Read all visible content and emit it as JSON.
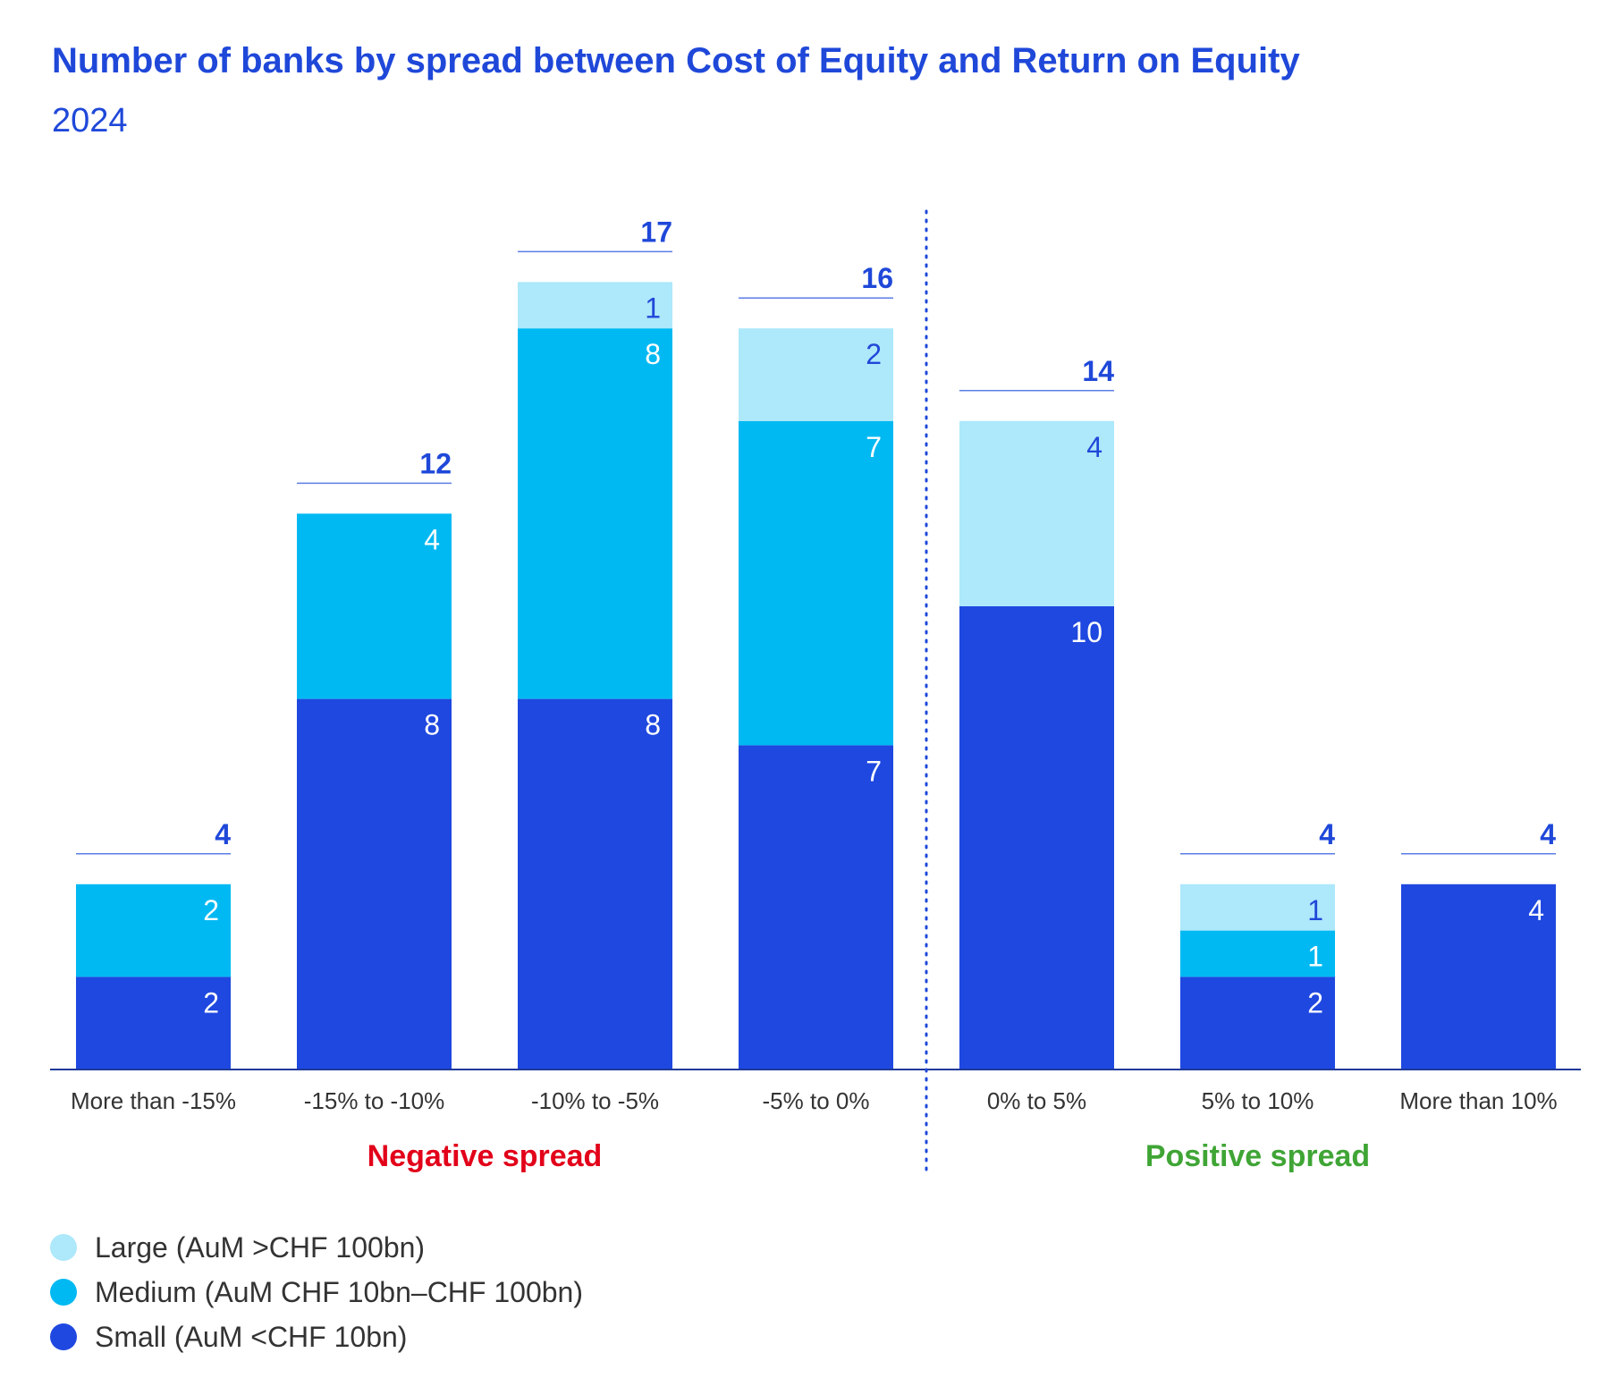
{
  "chart_data": {
    "type": "bar",
    "stacked": true,
    "title": "Number of banks by spread between Cost of Equity and Return on Equity",
    "subtitle": "2024",
    "categories": [
      "More than -15%",
      "-15% to -10%",
      "-10% to -5%",
      "-5% to 0%",
      "0% to 5%",
      "5% to 10%",
      "More than 10%"
    ],
    "series": [
      {
        "name": "Small (AuM <CHF 10bn)",
        "color": "#1f48e0",
        "label_color": "#ffffff",
        "values": [
          2,
          8,
          8,
          7,
          10,
          2,
          4
        ]
      },
      {
        "name": "Medium (AuM CHF 10bn–CHF 100bn)",
        "color": "#00b9f2",
        "label_color": "#ffffff",
        "values": [
          2,
          4,
          8,
          7,
          0,
          1,
          0
        ]
      },
      {
        "name": "Large (AuM >CHF 100bn)",
        "color": "#ade8fb",
        "label_color": "#1f48d9",
        "values": [
          0,
          0,
          1,
          2,
          4,
          1,
          0
        ]
      }
    ],
    "totals": [
      4,
      12,
      17,
      16,
      14,
      4,
      4
    ],
    "ylim": [
      0,
      17
    ],
    "groups": [
      {
        "label": "Negative spread",
        "categories": [
          0,
          1,
          2,
          3
        ],
        "color": "#e2001a"
      },
      {
        "label": "Positive spread",
        "categories": [
          4,
          5,
          6
        ],
        "color": "#3fa535"
      }
    ],
    "divider": "dotted vertical line between -5% to 0% and 0% to 5%",
    "legend_position": "bottom-left",
    "grid": false
  }
}
